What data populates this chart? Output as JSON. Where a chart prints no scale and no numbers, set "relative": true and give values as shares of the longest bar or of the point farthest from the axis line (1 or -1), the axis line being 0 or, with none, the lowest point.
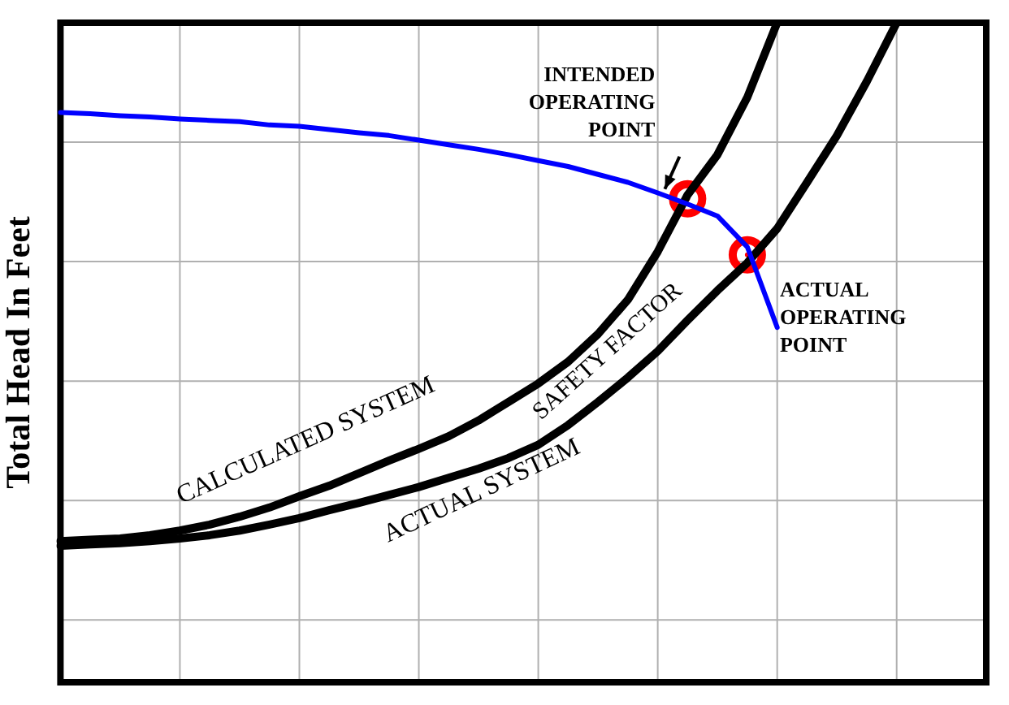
{
  "chart_data": {
    "type": "line",
    "relative": true,
    "ylabel": "Total Head In Feet",
    "grid": true,
    "legend": false,
    "marker": "none",
    "line_style": "solid",
    "categories": [
      null,
      null,
      null,
      null,
      null,
      null,
      null,
      null,
      null,
      null,
      null,
      null,
      null,
      null,
      null,
      null,
      null,
      null,
      null,
      null,
      null,
      null,
      null,
      null,
      null,
      null,
      null,
      null,
      null,
      null,
      null,
      null
    ],
    "series": [
      {
        "color": "#0000ff",
        "values": [
          0.864,
          0.862,
          0.859,
          0.857,
          0.854,
          0.852,
          0.85,
          0.845,
          0.843,
          0.838,
          0.833,
          0.829,
          0.822,
          0.815,
          0.808,
          0.8,
          0.791,
          0.782,
          0.77,
          0.758,
          0.742,
          0.725,
          0.707,
          0.66,
          0.538,
          null,
          null,
          null,
          null,
          null,
          null,
          null
        ]
      },
      {
        "name": "CALCULATED SYSTEM",
        "color": "#000000",
        "values": [
          0.214,
          0.216,
          0.218,
          0.223,
          0.23,
          0.239,
          0.251,
          0.265,
          0.282,
          0.298,
          0.317,
          0.336,
          0.354,
          0.373,
          0.397,
          0.425,
          0.453,
          0.486,
          0.528,
          0.58,
          0.653,
          0.739,
          0.8,
          0.887,
          1.0,
          null,
          null,
          null,
          null,
          null,
          null,
          null
        ]
      },
      {
        "name": "ACTUAL SYSTEM",
        "color": "#000000",
        "values": [
          0.207,
          0.209,
          0.211,
          0.214,
          0.218,
          0.223,
          0.23,
          0.239,
          0.249,
          0.261,
          0.272,
          0.284,
          0.296,
          0.31,
          0.324,
          0.34,
          0.36,
          0.39,
          0.425,
          0.462,
          0.502,
          0.549,
          0.594,
          0.636,
          0.688,
          0.758,
          0.829,
          0.911,
          1.0,
          null,
          null,
          null
        ]
      },
      {
        "name": "INTENDED OPERATING POINT",
        "marker": "circle",
        "color": "#ff0000",
        "values": [
          null,
          null,
          null,
          null,
          null,
          null,
          null,
          null,
          null,
          null,
          null,
          null,
          null,
          null,
          null,
          null,
          null,
          null,
          null,
          null,
          null,
          0.733,
          null,
          null,
          null,
          null,
          null,
          null,
          null,
          null,
          null,
          null
        ]
      },
      {
        "name": "ACTUAL OPERATING POINT",
        "marker": "circle",
        "color": "#ff0000",
        "values": [
          null,
          null,
          null,
          null,
          null,
          null,
          null,
          null,
          null,
          null,
          null,
          null,
          null,
          null,
          null,
          null,
          null,
          null,
          null,
          null,
          null,
          null,
          null,
          0.648,
          null,
          null,
          null,
          null,
          null,
          null,
          null,
          null
        ]
      }
    ],
    "annotations": [
      "SAFETY FACTOR"
    ]
  }
}
